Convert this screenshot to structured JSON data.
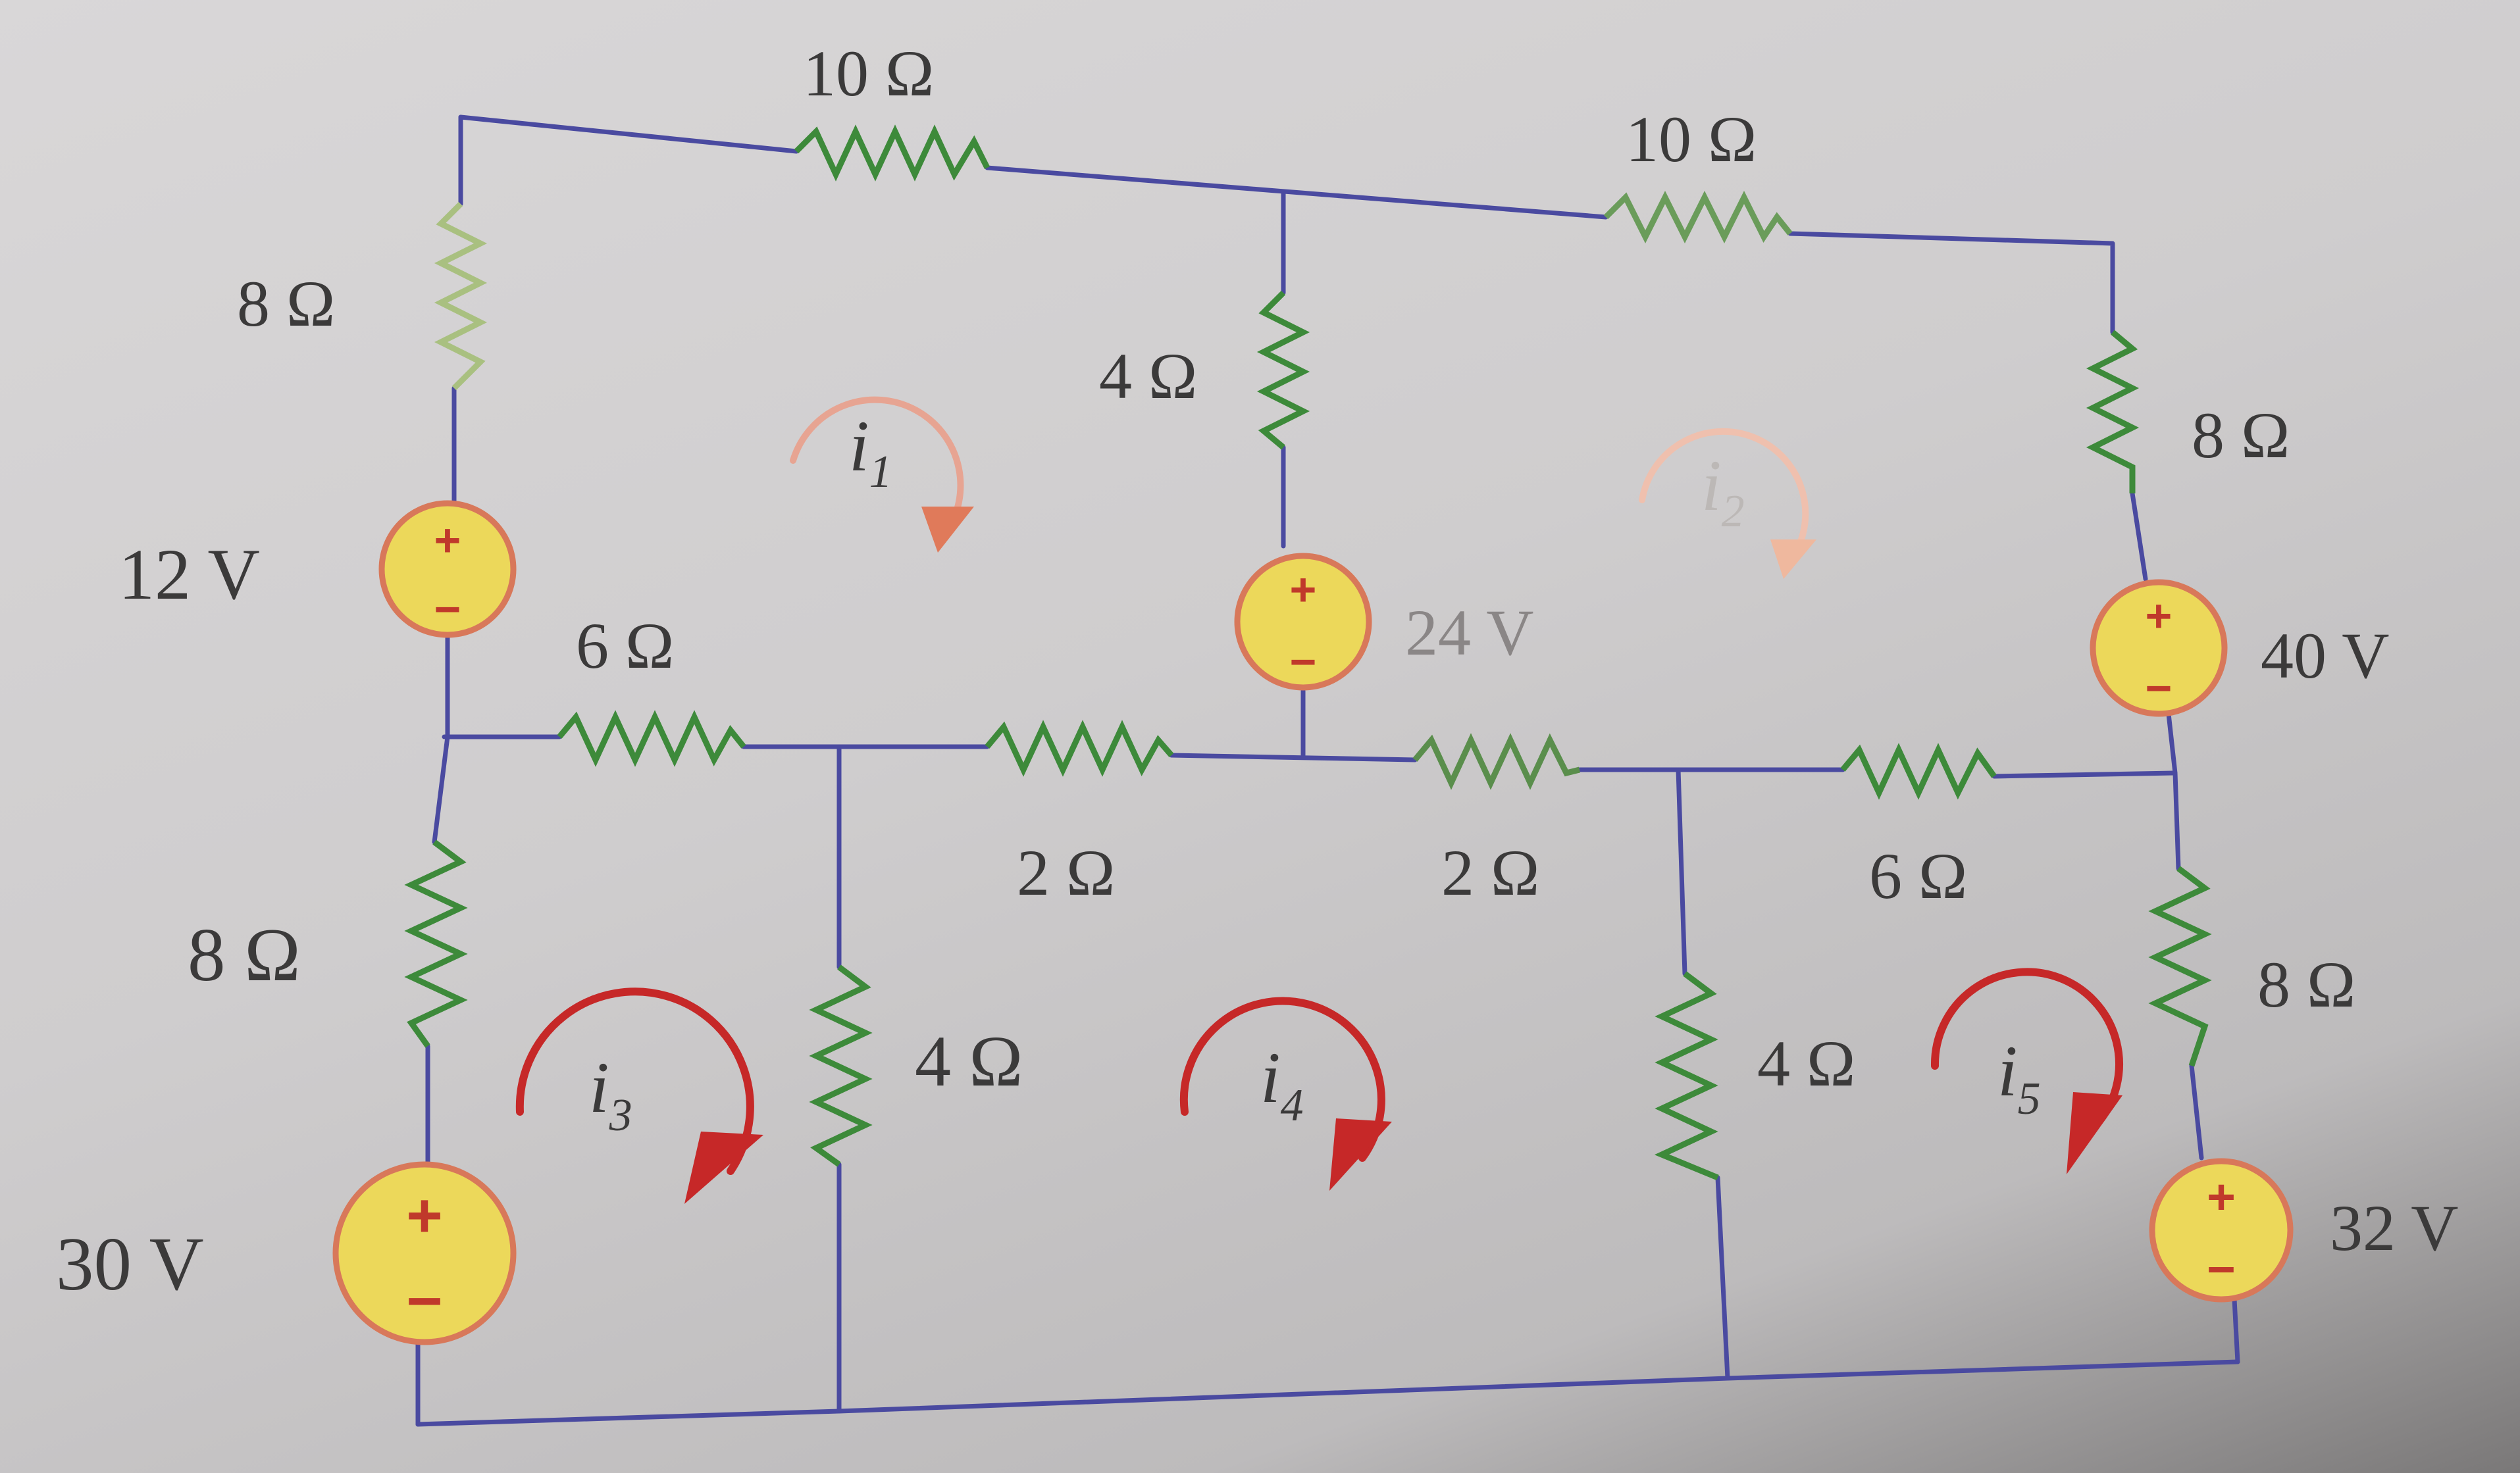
{
  "resistors": [
    {
      "id": "r-top-left-10",
      "label": "10 Ω"
    },
    {
      "id": "r-top-right-10",
      "label": "10 Ω"
    },
    {
      "id": "r-left-upper-8",
      "label": "8 Ω"
    },
    {
      "id": "r-center-4",
      "label": "4 Ω"
    },
    {
      "id": "r-right-upper-8",
      "label": "8 Ω"
    },
    {
      "id": "r-mid-6-left",
      "label": "6 Ω"
    },
    {
      "id": "r-mid-2-a",
      "label": "2 Ω"
    },
    {
      "id": "r-mid-2-b",
      "label": "2 Ω"
    },
    {
      "id": "r-mid-6-right",
      "label": "6 Ω"
    },
    {
      "id": "r-left-lower-8",
      "label": "8 Ω"
    },
    {
      "id": "r-lower-4-left",
      "label": "4 Ω"
    },
    {
      "id": "r-lower-4-right",
      "label": "4 Ω"
    },
    {
      "id": "r-right-lower-8",
      "label": "8 Ω"
    }
  ],
  "sources": [
    {
      "id": "v-12",
      "label": "12 V",
      "plus": "+",
      "minus": "−"
    },
    {
      "id": "v-24",
      "label": "24 V",
      "plus": "+",
      "minus": "−"
    },
    {
      "id": "v-40",
      "label": "40 V",
      "plus": "+",
      "minus": "−"
    },
    {
      "id": "v-30",
      "label": "30 V",
      "plus": "+",
      "minus": "−"
    },
    {
      "id": "v-32",
      "label": "32 V",
      "plus": "+",
      "minus": "−"
    }
  ],
  "meshes": [
    {
      "id": "i1",
      "symbol": "i",
      "sub": "1"
    },
    {
      "id": "i2",
      "symbol": "i",
      "sub": "2"
    },
    {
      "id": "i3",
      "symbol": "i",
      "sub": "3"
    },
    {
      "id": "i4",
      "symbol": "i",
      "sub": "4"
    },
    {
      "id": "i5",
      "symbol": "i",
      "sub": "5"
    }
  ],
  "colors": {
    "wire": "#4a4aa0",
    "resistor": "#3d8a3a",
    "source": "#ecd85a",
    "current": "#c62828"
  }
}
